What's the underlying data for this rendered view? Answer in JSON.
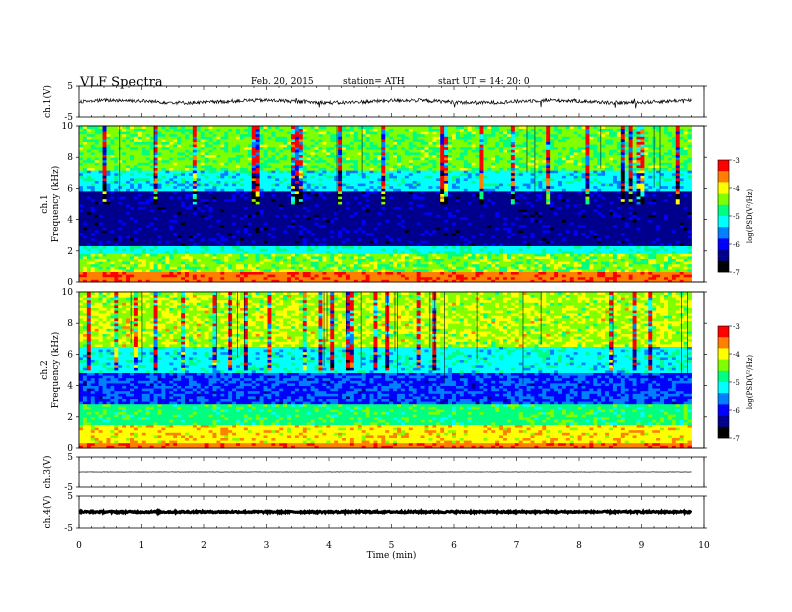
{
  "header": {
    "title": "VLF  Spectra",
    "date": "Feb. 20, 2015",
    "station": "station= ATH",
    "start": "start  UT  =    14: 20: 0"
  },
  "chart_data": [
    {
      "id": "ch1-waveform",
      "type": "line",
      "ylabel": "ch.1(V)",
      "ylim": [
        -5,
        5
      ],
      "yticks": [
        "5",
        "-5"
      ],
      "x_range_min": [
        0,
        9.8
      ],
      "series": [
        {
          "description": "noisy waveform near 0 V",
          "level": 0,
          "amplitude": 1.2
        }
      ]
    },
    {
      "id": "ch1-spectrogram",
      "type": "heatmap",
      "ylabel": "ch.1\nFrequency  (kHz)",
      "ylim": [
        0,
        10
      ],
      "yticks": [
        "0",
        "2",
        "4",
        "6",
        "8",
        "10"
      ],
      "x_range_min": [
        0,
        9.8
      ],
      "colorbar": {
        "label": "log(PSD(V²/Hz)",
        "range": [
          -7,
          -3
        ],
        "ticks": [
          "-3",
          "-4",
          "-5",
          "-6",
          "-7"
        ]
      }
    },
    {
      "id": "ch2-spectrogram",
      "type": "heatmap",
      "ylabel": "ch.2\nFrequency  (kHz)",
      "ylim": [
        0,
        10
      ],
      "yticks": [
        "0",
        "2",
        "4",
        "6",
        "8",
        "10"
      ],
      "x_range_min": [
        0,
        9.8
      ],
      "colorbar": {
        "label": "log(PSD(V²/Hz)",
        "range": [
          -7,
          -3
        ],
        "ticks": [
          "-3",
          "-4",
          "-5",
          "-6",
          "-7"
        ]
      }
    },
    {
      "id": "ch3-waveform",
      "type": "line",
      "ylabel": "ch.3(V)",
      "ylim": [
        -5,
        5
      ],
      "yticks": [
        "5",
        "-5"
      ],
      "series": [
        {
          "description": "flat line",
          "level": 0,
          "amplitude": 0.1
        }
      ]
    },
    {
      "id": "ch4-waveform",
      "type": "line",
      "ylabel": "ch.4(V)",
      "ylim": [
        -5,
        5
      ],
      "yticks": [
        "5",
        "-5"
      ],
      "series": [
        {
          "description": "thick band",
          "level": 0,
          "amplitude": 0.5
        }
      ]
    }
  ],
  "xaxis": {
    "label": "Time  (min)",
    "range": [
      0,
      10
    ],
    "ticks": [
      "0",
      "1",
      "2",
      "3",
      "4",
      "5",
      "6",
      "7",
      "8",
      "9",
      "10"
    ]
  },
  "colorscale": [
    "#000000",
    "#00008c",
    "#0000ff",
    "#0080ff",
    "#00ffff",
    "#00ff80",
    "#80ff00",
    "#ffff00",
    "#ff8000",
    "#ff0000",
    "#ffffff"
  ]
}
